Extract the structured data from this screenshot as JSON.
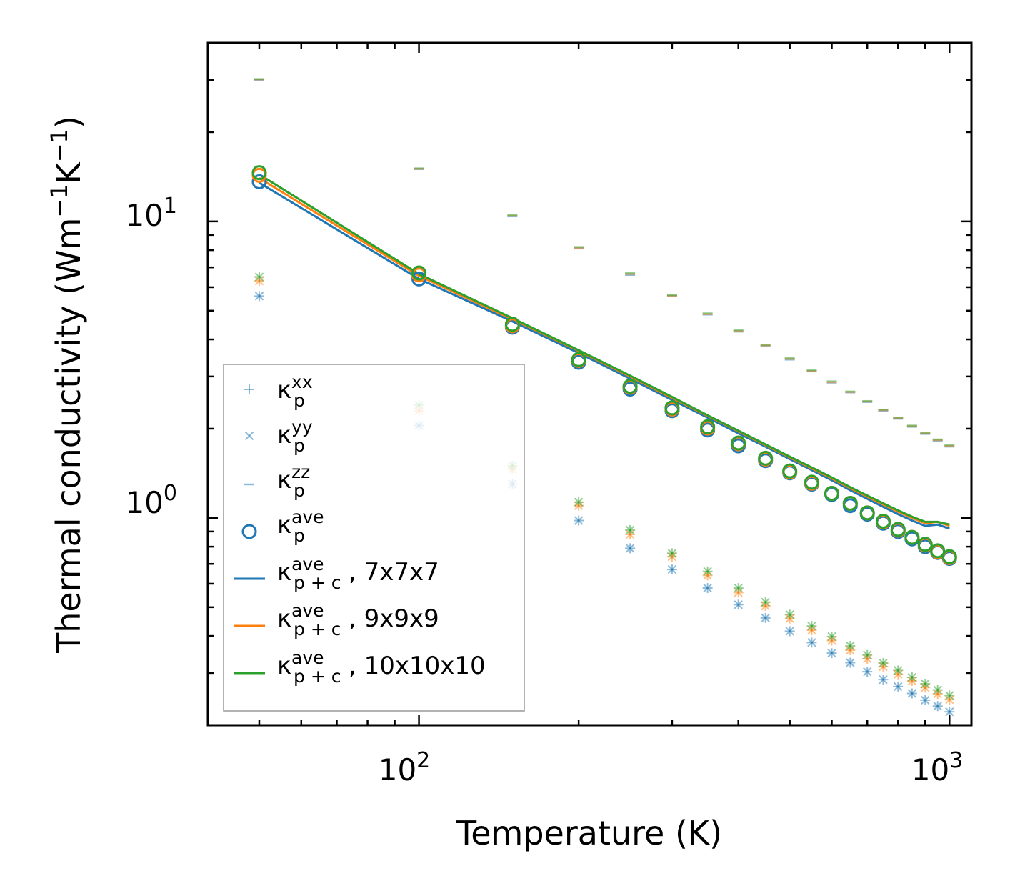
{
  "chart_data": {
    "type": "scatter",
    "xscale": "log",
    "yscale": "log",
    "xlim": [
      40,
      1100
    ],
    "ylim": [
      0.2,
      40
    ],
    "xlabel": "Temperature (K)",
    "ylabel_prefix": "Thermal conductivity (Wm",
    "ylabel_exp1": "−1",
    "ylabel_mid": "K",
    "ylabel_exp2": "−1",
    "ylabel_suffix": ")",
    "x_ticks": [
      {
        "base": "10",
        "exp": "2",
        "value": 100
      },
      {
        "base": "10",
        "exp": "3",
        "value": 1000
      }
    ],
    "y_ticks": [
      {
        "base": "10",
        "exp": "0",
        "value": 1
      },
      {
        "base": "10",
        "exp": "1",
        "value": 10
      }
    ],
    "colors": {
      "blue": "#1f77b4",
      "orange": "#ff7f0e",
      "green": "#2ca02c"
    },
    "temperatures": [
      50,
      100,
      150,
      200,
      250,
      300,
      350,
      400,
      450,
      500,
      550,
      600,
      650,
      700,
      750,
      800,
      850,
      900,
      950,
      1000
    ],
    "series": [
      {
        "name": "kp_xx_7x7x7",
        "marker": "+",
        "color": "#1f77b4",
        "values": [
          5.6,
          2.05,
          1.3,
          0.98,
          0.79,
          0.67,
          0.58,
          0.51,
          0.46,
          0.415,
          0.38,
          0.35,
          0.325,
          0.303,
          0.285,
          0.27,
          0.256,
          0.243,
          0.232,
          0.222
        ]
      },
      {
        "name": "kp_xx_9x9x9",
        "marker": "+",
        "color": "#ff7f0e",
        "values": [
          6.3,
          2.3,
          1.46,
          1.1,
          0.88,
          0.74,
          0.64,
          0.56,
          0.505,
          0.458,
          0.418,
          0.386,
          0.358,
          0.335,
          0.315,
          0.297,
          0.282,
          0.268,
          0.255,
          0.244
        ]
      },
      {
        "name": "kp_xx_10x10x10",
        "marker": "+",
        "color": "#2ca02c",
        "values": [
          6.5,
          2.4,
          1.5,
          1.13,
          0.91,
          0.76,
          0.66,
          0.58,
          0.52,
          0.472,
          0.432,
          0.398,
          0.37,
          0.345,
          0.324,
          0.306,
          0.29,
          0.276,
          0.263,
          0.252
        ]
      },
      {
        "name": "kp_yy_7x7x7",
        "marker": "x",
        "color": "#1f77b4",
        "values": [
          5.6,
          2.05,
          1.3,
          0.98,
          0.79,
          0.67,
          0.58,
          0.51,
          0.46,
          0.415,
          0.38,
          0.35,
          0.325,
          0.303,
          0.285,
          0.27,
          0.256,
          0.243,
          0.232,
          0.222
        ]
      },
      {
        "name": "kp_yy_9x9x9",
        "marker": "x",
        "color": "#ff7f0e",
        "values": [
          6.3,
          2.3,
          1.46,
          1.1,
          0.88,
          0.74,
          0.64,
          0.56,
          0.505,
          0.458,
          0.418,
          0.386,
          0.358,
          0.335,
          0.315,
          0.297,
          0.282,
          0.268,
          0.255,
          0.244
        ]
      },
      {
        "name": "kp_yy_10x10x10",
        "marker": "x",
        "color": "#2ca02c",
        "values": [
          6.5,
          2.4,
          1.5,
          1.13,
          0.91,
          0.76,
          0.66,
          0.58,
          0.52,
          0.472,
          0.432,
          0.398,
          0.37,
          0.345,
          0.324,
          0.306,
          0.29,
          0.276,
          0.263,
          0.252
        ]
      },
      {
        "name": "kp_zz_7x7x7",
        "marker": "_",
        "color": "#1f77b4",
        "values": [
          30.0,
          15.0,
          10.4,
          8.1,
          6.6,
          5.6,
          4.85,
          4.25,
          3.8,
          3.42,
          3.12,
          2.86,
          2.65,
          2.46,
          2.3,
          2.16,
          2.03,
          1.92,
          1.82,
          1.74
        ]
      },
      {
        "name": "kp_zz_9x9x9",
        "marker": "_",
        "color": "#ff7f0e",
        "values": [
          30.1,
          15.05,
          10.45,
          8.15,
          6.65,
          5.62,
          4.87,
          4.27,
          3.82,
          3.44,
          3.13,
          2.87,
          2.66,
          2.47,
          2.31,
          2.17,
          2.04,
          1.93,
          1.83,
          1.75
        ]
      },
      {
        "name": "kp_zz_10x10x10",
        "marker": "_",
        "color": "#2ca02c",
        "values": [
          30.2,
          15.1,
          10.5,
          8.2,
          6.7,
          5.65,
          4.9,
          4.3,
          3.84,
          3.46,
          3.15,
          2.89,
          2.67,
          2.48,
          2.32,
          2.18,
          2.05,
          1.94,
          1.84,
          1.76
        ]
      },
      {
        "name": "kp_ave_7x7x7",
        "marker": "o",
        "color": "#1f77b4",
        "values": [
          13.6,
          6.4,
          4.4,
          3.35,
          2.72,
          2.3,
          1.98,
          1.75,
          1.56,
          1.42,
          1.3,
          1.2,
          1.1,
          1.03,
          0.96,
          0.9,
          0.85,
          0.8,
          0.765,
          0.73
        ]
      },
      {
        "name": "kp_ave_9x9x9",
        "marker": "o",
        "color": "#ff7f0e",
        "values": [
          14.3,
          6.6,
          4.45,
          3.4,
          2.76,
          2.33,
          2.01,
          1.78,
          1.58,
          1.43,
          1.31,
          1.21,
          1.12,
          1.04,
          0.97,
          0.91,
          0.86,
          0.81,
          0.77,
          0.735
        ]
      },
      {
        "name": "kp_ave_10x10x10",
        "marker": "o",
        "color": "#2ca02c",
        "values": [
          14.6,
          6.7,
          4.5,
          3.42,
          2.78,
          2.35,
          2.03,
          1.79,
          1.59,
          1.44,
          1.32,
          1.21,
          1.12,
          1.04,
          0.975,
          0.915,
          0.86,
          0.815,
          0.775,
          0.74
        ]
      },
      {
        "name": "kpc_ave_7x7x7",
        "line": true,
        "color": "#1f77b4",
        "values": [
          13.5,
          6.4,
          4.6,
          3.6,
          2.95,
          2.5,
          2.18,
          1.93,
          1.74,
          1.58,
          1.45,
          1.34,
          1.24,
          1.16,
          1.09,
          1.03,
          0.98,
          0.94,
          0.95,
          0.92
        ]
      },
      {
        "name": "kpc_ave_9x9x9",
        "line": true,
        "color": "#ff7f0e",
        "values": [
          14.0,
          6.55,
          4.68,
          3.66,
          3.0,
          2.54,
          2.21,
          1.96,
          1.76,
          1.6,
          1.47,
          1.36,
          1.26,
          1.18,
          1.11,
          1.05,
          1.0,
          0.96,
          0.97,
          0.94
        ]
      },
      {
        "name": "kpc_ave_10x10x10",
        "line": true,
        "color": "#2ca02c",
        "values": [
          14.4,
          6.65,
          4.72,
          3.68,
          3.02,
          2.56,
          2.22,
          1.97,
          1.77,
          1.61,
          1.48,
          1.37,
          1.27,
          1.19,
          1.12,
          1.06,
          1.01,
          0.97,
          0.97,
          0.95
        ]
      }
    ],
    "legend": {
      "position": "lower-left",
      "entries": [
        {
          "symbol": "kappa",
          "sup": "xx",
          "sub": "p",
          "suffix": "",
          "marker": "+",
          "color": "#1f77b4"
        },
        {
          "symbol": "kappa",
          "sup": "yy",
          "sub": "p",
          "suffix": "",
          "marker": "x",
          "color": "#1f77b4"
        },
        {
          "symbol": "kappa",
          "sup": "zz",
          "sub": "p",
          "suffix": "",
          "marker": "_",
          "color": "#1f77b4"
        },
        {
          "symbol": "kappa",
          "sup": "ave",
          "sub": "p",
          "suffix": "",
          "marker": "o",
          "color": "#1f77b4"
        },
        {
          "symbol": "kappa",
          "sup": "ave",
          "sub": "p + c",
          "suffix": ", 7x7x7",
          "marker": "line",
          "color": "#1f77b4"
        },
        {
          "symbol": "kappa",
          "sup": "ave",
          "sub": "p + c",
          "suffix": ", 9x9x9",
          "marker": "line",
          "color": "#ff7f0e"
        },
        {
          "symbol": "kappa",
          "sup": "ave",
          "sub": "p + c",
          "suffix": ", 10x10x10",
          "marker": "line",
          "color": "#2ca02c"
        }
      ],
      "kappa_glyph": "κ"
    }
  }
}
